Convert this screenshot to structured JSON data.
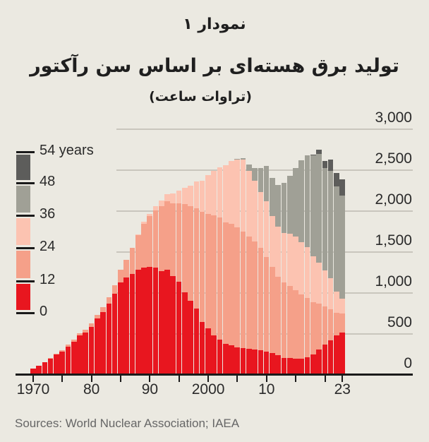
{
  "header": {
    "figure_number": "نمودار ۱",
    "title": "تولید برق هسته‌ای بر اساس سن رآکتور",
    "subtitle": "(تراوات ساعت)"
  },
  "source": "Sources: World Nuclear Association; IAEA",
  "chart_data": {
    "type": "bar",
    "stacked": true,
    "title": "تولید برق هسته‌ای بر اساس سن رآکتور",
    "subtitle": "(تراوات ساعت)",
    "xlabel": "",
    "ylabel": "TWh",
    "ylim": [
      0,
      3000
    ],
    "yticks": [
      0,
      500,
      1000,
      1500,
      2000,
      2500,
      3000
    ],
    "ytick_labels": [
      "0",
      "500",
      "1,000",
      "1,500",
      "2,000",
      "2,500",
      "3,000"
    ],
    "xtick_labels": [
      {
        "year": 1970,
        "label": "1970"
      },
      {
        "year": 1980,
        "label": "80"
      },
      {
        "year": 1990,
        "label": "90"
      },
      {
        "year": 2000,
        "label": "2000"
      },
      {
        "year": 2010,
        "label": "10"
      },
      {
        "year": 2023,
        "label": "23"
      }
    ],
    "minor_xticks": [
      1975,
      1985,
      1995,
      2005,
      2015,
      2020
    ],
    "grid": true,
    "legend_position": "left-inset",
    "legend": {
      "title_suffix": "years",
      "breaks": [
        "0",
        "12",
        "24",
        "36",
        "48",
        "54 years"
      ]
    },
    "categories": [
      1970,
      1971,
      1972,
      1973,
      1974,
      1975,
      1976,
      1977,
      1978,
      1979,
      1980,
      1981,
      1982,
      1983,
      1984,
      1985,
      1986,
      1987,
      1988,
      1989,
      1990,
      1991,
      1992,
      1993,
      1994,
      1995,
      1996,
      1997,
      1998,
      1999,
      2000,
      2001,
      2002,
      2003,
      2004,
      2005,
      2006,
      2007,
      2008,
      2009,
      2010,
      2011,
      2012,
      2013,
      2014,
      2015,
      2016,
      2017,
      2018,
      2019,
      2020,
      2021,
      2022,
      2023
    ],
    "series": [
      {
        "name": "0-12 years",
        "color": "#e8161f",
        "values": [
          70,
          100,
          150,
          190,
          240,
          280,
          340,
          400,
          470,
          510,
          580,
          680,
          760,
          860,
          980,
          1120,
          1180,
          1220,
          1280,
          1300,
          1310,
          1300,
          1260,
          1280,
          1200,
          1130,
          1000,
          900,
          800,
          640,
          560,
          470,
          420,
          370,
          350,
          330,
          320,
          310,
          300,
          290,
          280,
          260,
          230,
          200,
          195,
          190,
          190,
          210,
          240,
          300,
          360,
          410,
          470,
          510
        ]
      },
      {
        "name": "12-24 years",
        "color": "#f5a089",
        "values": [
          0,
          0,
          0,
          5,
          10,
          15,
          20,
          25,
          30,
          35,
          40,
          45,
          60,
          80,
          110,
          160,
          220,
          320,
          420,
          540,
          620,
          700,
          790,
          830,
          890,
          960,
          1080,
          1150,
          1230,
          1340,
          1400,
          1470,
          1490,
          1480,
          1490,
          1460,
          1420,
          1370,
          1320,
          1250,
          1150,
          1050,
          960,
          920,
          880,
          840,
          780,
          720,
          640,
          560,
          470,
          380,
          280,
          230
        ]
      },
      {
        "name": "24-36 years",
        "color": "#fcc3b1",
        "values": [
          0,
          0,
          0,
          0,
          0,
          0,
          0,
          0,
          0,
          0,
          0,
          0,
          0,
          0,
          0,
          0,
          0,
          0,
          10,
          20,
          30,
          50,
          70,
          90,
          120,
          150,
          200,
          250,
          320,
          380,
          470,
          540,
          620,
          700,
          760,
          830,
          880,
          800,
          740,
          680,
          680,
          620,
          610,
          600,
          640,
          650,
          640,
          620,
          560,
          500,
          440,
          380,
          260,
          180
        ]
      },
      {
        "name": "36-48 years",
        "color": "#a0a096",
        "values": [
          0,
          0,
          0,
          0,
          0,
          0,
          0,
          0,
          0,
          0,
          0,
          0,
          0,
          0,
          0,
          0,
          0,
          0,
          0,
          0,
          0,
          0,
          0,
          0,
          0,
          0,
          0,
          0,
          0,
          0,
          0,
          0,
          0,
          0,
          0,
          10,
          20,
          80,
          160,
          300,
          430,
          470,
          510,
          620,
          710,
          840,
          1000,
          1120,
          1230,
          1330,
          1250,
          1310,
          1280,
          1260
        ]
      },
      {
        "name": "48-54 years",
        "color": "#5d5d5b",
        "values": [
          0,
          0,
          0,
          0,
          0,
          0,
          0,
          0,
          0,
          0,
          0,
          0,
          0,
          0,
          0,
          0,
          0,
          0,
          0,
          0,
          0,
          0,
          0,
          0,
          0,
          0,
          0,
          0,
          0,
          0,
          0,
          0,
          0,
          0,
          0,
          0,
          0,
          0,
          0,
          0,
          0,
          0,
          0,
          0,
          0,
          0,
          0,
          0,
          10,
          50,
          80,
          140,
          170,
          200
        ]
      }
    ]
  }
}
